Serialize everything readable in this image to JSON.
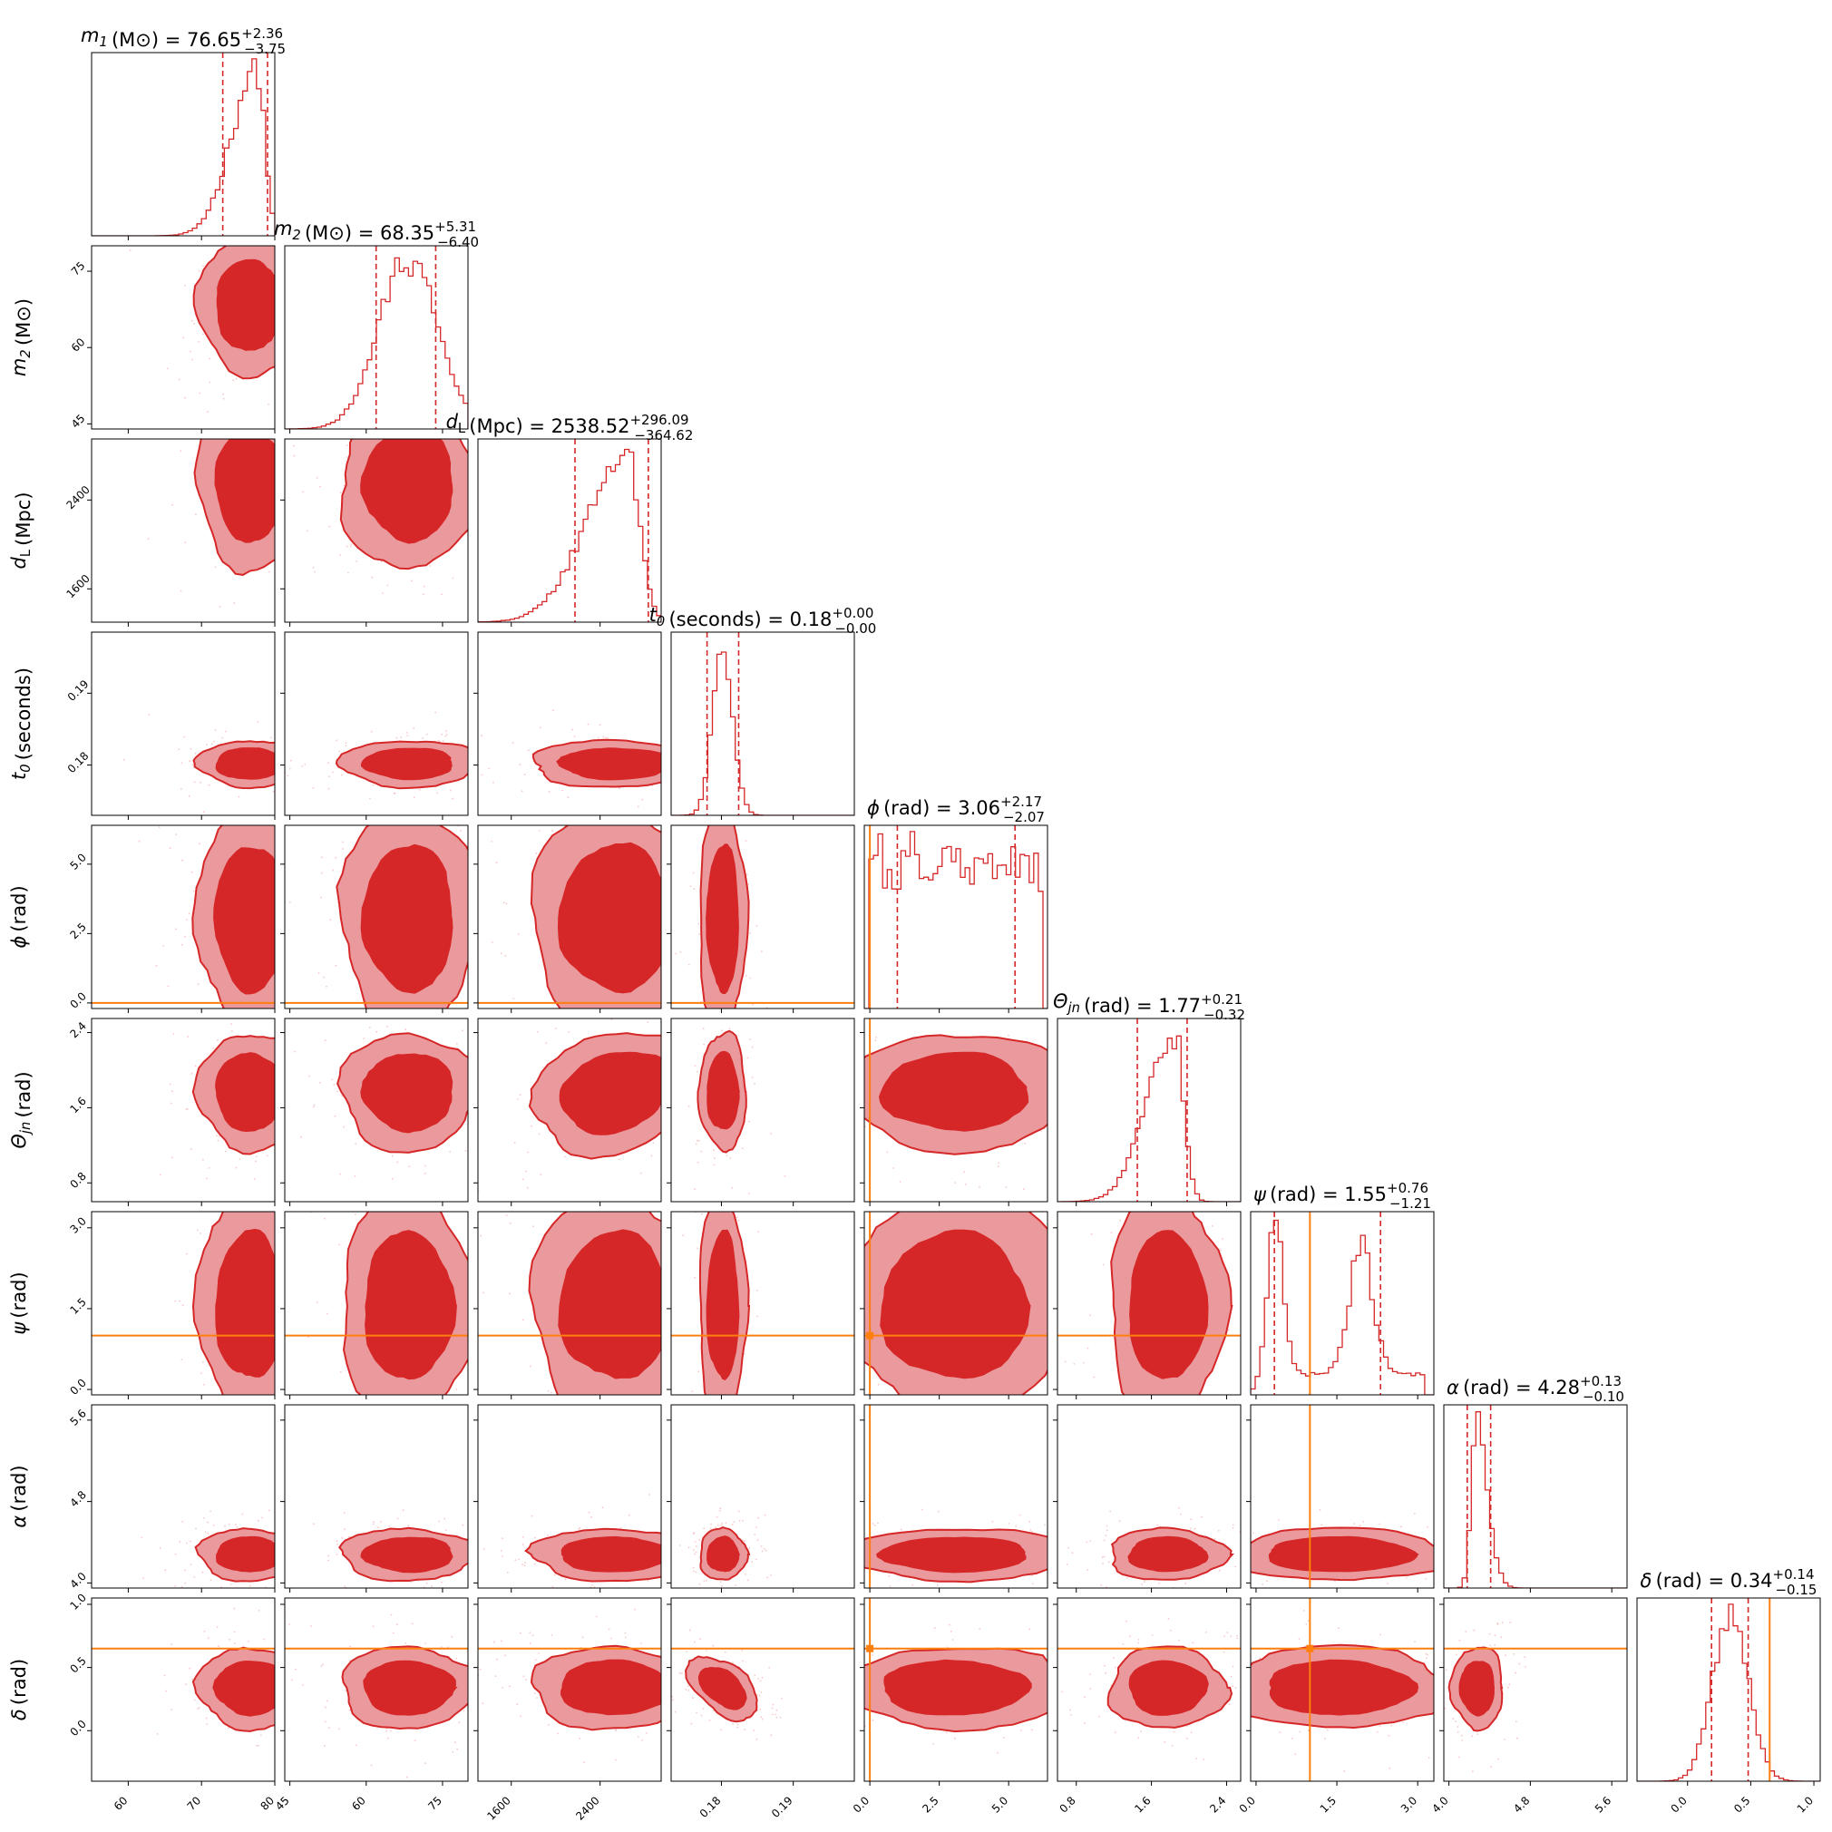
{
  "chart_data": {
    "type": "corner",
    "params": [
      {
        "key": "m1",
        "sym": "m",
        "sub": "1",
        "unit": "(M⊙)",
        "axis_label": "m1 (M⊙)",
        "range": [
          55,
          80
        ],
        "ticks": [
          60,
          70,
          80
        ],
        "tick_labels": [
          "60",
          "70",
          "80"
        ],
        "median": 76.65,
        "plus": 2.36,
        "minus": 3.75,
        "title_value": "76.65",
        "title_plus": "+2.36",
        "title_minus": "−3.75",
        "truth": null,
        "hist_shape": "left_skew",
        "mean": 76.6,
        "sd": 3.1
      },
      {
        "key": "m2",
        "sym": "m",
        "sub": "2",
        "unit": "(M⊙)",
        "axis_label": "m2 (M⊙)",
        "range": [
          44,
          80
        ],
        "ticks": [
          45,
          60,
          75
        ],
        "tick_labels": [
          "45",
          "60",
          "75"
        ],
        "median": 68.35,
        "plus": 5.31,
        "minus": 6.4,
        "title_value": "68.35",
        "title_plus": "+5.31",
        "title_minus": "−6.40",
        "truth": null,
        "hist_shape": "normal",
        "mean": 68.2,
        "sd": 5.8
      },
      {
        "key": "dL",
        "sym": "d",
        "sub": "L",
        "unit": "(Mpc)",
        "axis_label": "dL (Mpc)",
        "range": [
          1300,
          2950
        ],
        "ticks": [
          1600,
          2400
        ],
        "tick_labels": [
          "1600",
          "2400"
        ],
        "median": 2538.52,
        "plus": 296.09,
        "minus": 364.62,
        "title_value": "2538.52",
        "title_plus": "+296.09",
        "title_minus": "−364.62",
        "truth": null,
        "hist_shape": "left_skew",
        "mean": 2540,
        "sd": 330
      },
      {
        "key": "t0",
        "sym": "t",
        "sub": "0",
        "unit": "(seconds)",
        "axis_label": "t0 (seconds)",
        "range": [
          0.173,
          0.1985
        ],
        "ticks": [
          0.18,
          0.19
        ],
        "tick_labels": [
          "0.18",
          "0.19"
        ],
        "median": 0.1802,
        "plus": 0.0022,
        "minus": 0.0022,
        "title_value": "0.18",
        "title_plus": "+0.00",
        "title_minus": "−0.00",
        "truth": null,
        "hist_shape": "normal",
        "mean": 0.1802,
        "sd": 0.0014
      },
      {
        "key": "phi",
        "sym": "ϕ",
        "sub": "",
        "unit": "(rad)",
        "axis_label": "ϕ (rad)",
        "range": [
          -0.2,
          6.4
        ],
        "ticks": [
          0.0,
          2.5,
          5.0
        ],
        "tick_labels": [
          "0.0",
          "2.5",
          "5.0"
        ],
        "median": 3.06,
        "plus": 2.17,
        "minus": 2.07,
        "title_value": "3.06",
        "title_plus": "+2.17",
        "title_minus": "−2.07",
        "truth": 0.0,
        "hist_shape": "uniform",
        "mean": 3.1,
        "sd": 1.8
      },
      {
        "key": "theta",
        "sym": "Θ",
        "sub": "jn",
        "unit": "(rad)",
        "axis_label": "Θjn (rad)",
        "range": [
          0.6,
          2.55
        ],
        "ticks": [
          0.8,
          1.6,
          2.4
        ],
        "tick_labels": [
          "0.8",
          "1.6",
          "2.4"
        ],
        "median": 1.77,
        "plus": 0.21,
        "minus": 0.32,
        "title_value": "1.77",
        "title_plus": "+0.21",
        "title_minus": "−0.32",
        "truth": null,
        "hist_shape": "left_skew",
        "mean": 1.77,
        "sd": 0.27
      },
      {
        "key": "psi",
        "sym": "ψ",
        "sub": "",
        "unit": "(rad)",
        "axis_label": "ψ (rad)",
        "range": [
          -0.1,
          3.3
        ],
        "ticks": [
          0.0,
          1.5,
          3.0
        ],
        "tick_labels": [
          "0.0",
          "1.5",
          "3.0"
        ],
        "median": 1.55,
        "plus": 0.76,
        "minus": 1.21,
        "title_value": "1.55",
        "title_plus": "+0.76",
        "title_minus": "−1.21",
        "truth": 1.0,
        "hist_shape": "bimodal",
        "mean": 1.55,
        "sd": 0.9
      },
      {
        "key": "alpha",
        "sym": "α",
        "sub": "",
        "unit": "(rad)",
        "axis_label": "α (rad)",
        "range": [
          3.95,
          5.75
        ],
        "ticks": [
          4.0,
          4.8,
          5.6
        ],
        "tick_labels": [
          "4.0",
          "4.8",
          "5.6"
        ],
        "median": 4.28,
        "plus": 0.13,
        "minus": 0.1,
        "title_value": "4.28",
        "title_plus": "+0.13",
        "title_minus": "−0.10",
        "truth": null,
        "hist_shape": "right_skew",
        "mean": 4.28,
        "sd": 0.11
      },
      {
        "key": "delta",
        "sym": "δ",
        "sub": "",
        "unit": "(rad)",
        "axis_label": "δ (rad)",
        "range": [
          -0.4,
          1.05
        ],
        "ticks": [
          0.0,
          0.5,
          1.0
        ],
        "tick_labels": [
          "0.0",
          "0.5",
          "1.0"
        ],
        "median": 0.34,
        "plus": 0.14,
        "minus": 0.15,
        "title_value": "0.34",
        "title_plus": "+0.14",
        "title_minus": "−0.15",
        "truth": 0.65,
        "hist_shape": "normal",
        "mean": 0.34,
        "sd": 0.14
      }
    ],
    "y_tick_overrides": {
      "m2": {
        "ticks": [
          45,
          60,
          75
        ],
        "tick_labels": [
          "45",
          "60",
          "75"
        ]
      },
      "dL": {
        "ticks": [
          1600,
          2400
        ],
        "tick_labels": [
          "1600",
          "2400"
        ]
      },
      "t0": {
        "ticks": [
          0.18,
          0.19
        ],
        "tick_labels": [
          "0.18",
          "0.19"
        ]
      },
      "phi": {
        "ticks": [
          0.0,
          2.5,
          5.0
        ],
        "tick_labels": [
          "0.0",
          "2.5",
          "5.0"
        ]
      },
      "theta": {
        "ticks": [
          0.8,
          1.6,
          2.4
        ],
        "tick_labels": [
          "0.8",
          "1.6",
          "2.4"
        ]
      },
      "psi": {
        "ticks": [
          0.0,
          1.5,
          3.0
        ],
        "tick_labels": [
          "0.0",
          "1.5",
          "3.0"
        ]
      },
      "alpha": {
        "ticks": [
          4.0,
          4.8,
          5.6
        ],
        "tick_labels": [
          "4.0",
          "4.8",
          "5.6"
        ]
      },
      "delta": {
        "ticks": [
          0.0,
          0.5,
          1.0
        ],
        "tick_labels": [
          "0.0",
          "0.5",
          "1.0"
        ]
      }
    },
    "contour_levels": [
      "39%",
      "86%"
    ],
    "colors": {
      "posterior": "#d62728",
      "posterior_light": "#ea9a9c",
      "truth": "#ff7f0e",
      "axes": "#000000"
    }
  }
}
